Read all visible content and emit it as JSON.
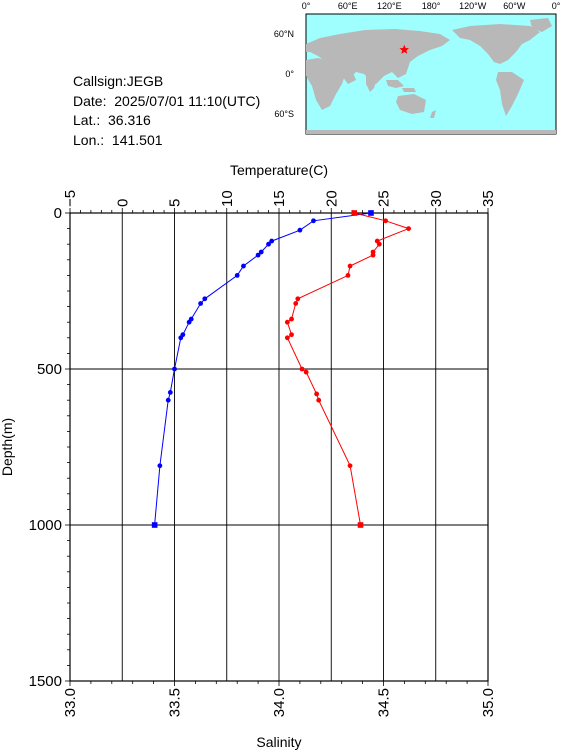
{
  "info": {
    "callsign": "Callsign:JEGB",
    "date": "Date:  2025/07/01 11:10(UTC)",
    "lat": "Lat.:  36.316",
    "lon": "Lon.:  141.501"
  },
  "map": {
    "lon_labels": [
      "0°",
      "60°E",
      "120°E",
      "180°",
      "120°W",
      "60°W",
      "0°"
    ],
    "lat_labels": [
      "60°N",
      "0°",
      "60°S"
    ],
    "colors": {
      "ocean": "#9fffff",
      "land": "#b8b8b8",
      "marker": "#ff0000"
    },
    "marker_icon": "star-icon",
    "marker_lat": 36.316,
    "marker_lon": 141.501
  },
  "chart_data": {
    "type": "line",
    "ylabel": "Depth(m)",
    "x_top_label": "Temperature(C)",
    "x_bottom_label": "Salinity",
    "y_ticks": [
      "0",
      "500",
      "1000",
      "1500"
    ],
    "temp_ticks": [
      "−5",
      "0",
      "5",
      "10",
      "15",
      "20",
      "25",
      "30",
      "35"
    ],
    "sal_ticks": [
      "33.0",
      "33.5",
      "34.0",
      "34.5",
      "35.0"
    ],
    "ylim": [
      0,
      1500
    ],
    "temp_xlim": [
      -5,
      35
    ],
    "sal_xlim": [
      33.0,
      35.0
    ],
    "grid": true,
    "series": [
      {
        "name": "Temperature(C)",
        "axis": "temperature",
        "color": "#0000ff",
        "points": [
          {
            "depth": 0,
            "value": 23.8
          },
          {
            "depth": 25,
            "value": 18.3
          },
          {
            "depth": 55,
            "value": 17.0
          },
          {
            "depth": 90,
            "value": 14.3
          },
          {
            "depth": 100,
            "value": 14.0
          },
          {
            "depth": 125,
            "value": 13.3
          },
          {
            "depth": 135,
            "value": 13.0
          },
          {
            "depth": 170,
            "value": 11.6
          },
          {
            "depth": 200,
            "value": 11.0
          },
          {
            "depth": 275,
            "value": 7.9
          },
          {
            "depth": 290,
            "value": 7.5
          },
          {
            "depth": 340,
            "value": 6.6
          },
          {
            "depth": 350,
            "value": 6.4
          },
          {
            "depth": 390,
            "value": 5.8
          },
          {
            "depth": 400,
            "value": 5.6
          },
          {
            "depth": 500,
            "value": 5.0
          },
          {
            "depth": 575,
            "value": 4.6
          },
          {
            "depth": 600,
            "value": 4.4
          },
          {
            "depth": 810,
            "value": 3.6
          },
          {
            "depth": 1000,
            "value": 3.1
          }
        ]
      },
      {
        "name": "Salinity",
        "axis": "salinity",
        "color": "#ff0000",
        "points": [
          {
            "depth": 0,
            "value": 34.36
          },
          {
            "depth": 25,
            "value": 34.51
          },
          {
            "depth": 50,
            "value": 34.62
          },
          {
            "depth": 90,
            "value": 34.47
          },
          {
            "depth": 100,
            "value": 34.48
          },
          {
            "depth": 125,
            "value": 34.45
          },
          {
            "depth": 135,
            "value": 34.45
          },
          {
            "depth": 170,
            "value": 34.34
          },
          {
            "depth": 200,
            "value": 34.33
          },
          {
            "depth": 275,
            "value": 34.09
          },
          {
            "depth": 290,
            "value": 34.08
          },
          {
            "depth": 340,
            "value": 34.06
          },
          {
            "depth": 350,
            "value": 34.04
          },
          {
            "depth": 390,
            "value": 34.06
          },
          {
            "depth": 400,
            "value": 34.04
          },
          {
            "depth": 500,
            "value": 34.11
          },
          {
            "depth": 510,
            "value": 34.13
          },
          {
            "depth": 580,
            "value": 34.18
          },
          {
            "depth": 600,
            "value": 34.19
          },
          {
            "depth": 810,
            "value": 34.34
          },
          {
            "depth": 1000,
            "value": 34.39
          }
        ]
      }
    ]
  }
}
